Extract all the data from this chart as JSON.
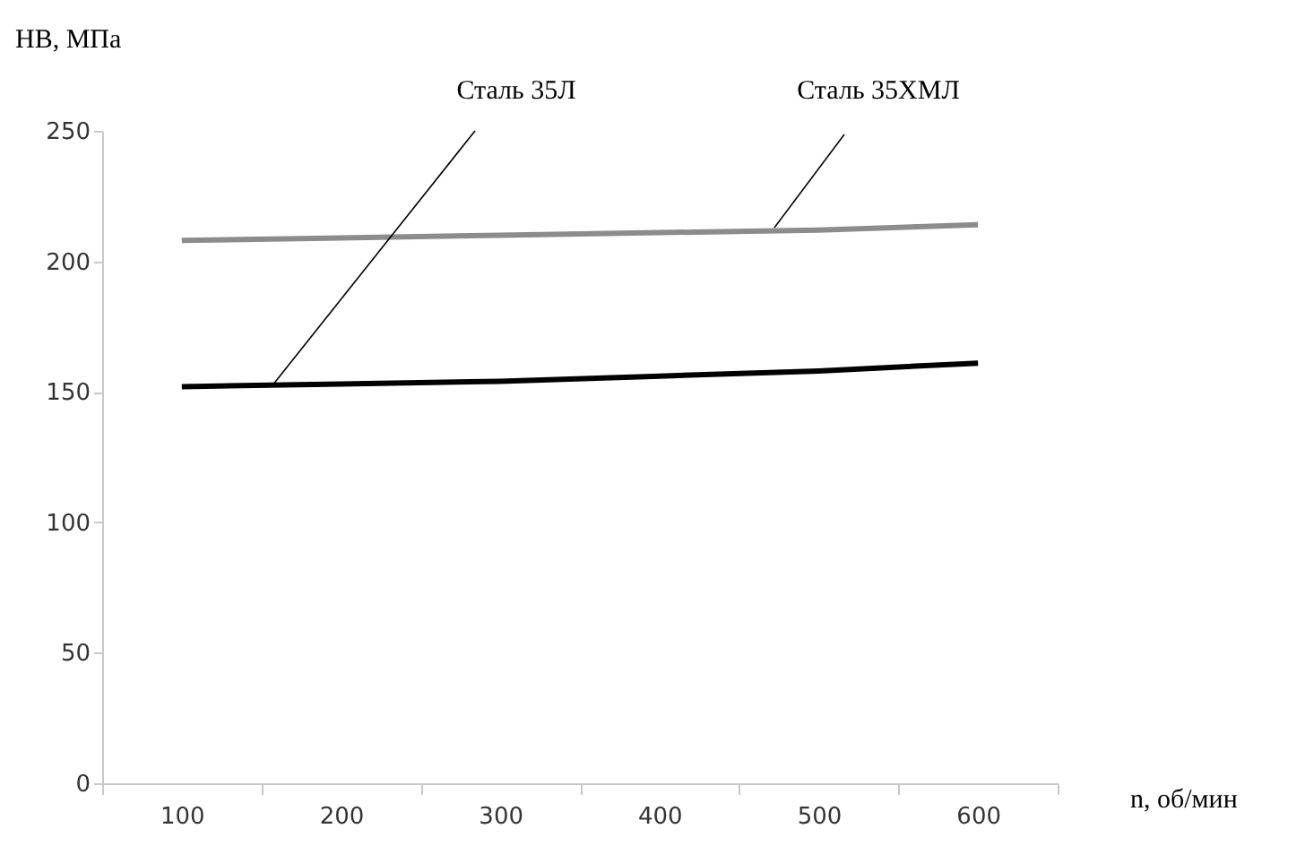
{
  "chart_data": {
    "type": "line",
    "ylabel": "НВ, МПа",
    "xlabel": "n, об/мин",
    "categories": [
      "100",
      "200",
      "300",
      "400",
      "500",
      "600"
    ],
    "series": [
      {
        "name": "Сталь 35Л",
        "color": "#000000",
        "values": [
          152,
          153,
          154,
          156,
          158,
          161
        ]
      },
      {
        "name": "Сталь 35ХМЛ",
        "color": "#8c8c8c",
        "values": [
          208,
          209,
          210,
          211,
          212,
          214
        ]
      }
    ],
    "ylim": [
      0,
      250
    ],
    "yticks": [
      0,
      50,
      100,
      150,
      200,
      250
    ],
    "grid": false,
    "legend": false,
    "marker": "none",
    "line_style": "solid"
  }
}
